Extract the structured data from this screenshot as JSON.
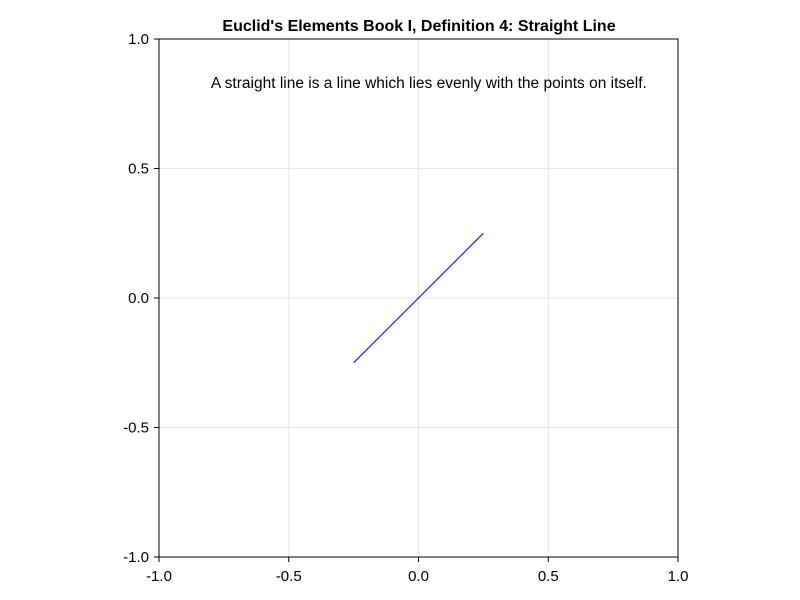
{
  "chart_data": {
    "type": "line",
    "title": "Euclid's Elements Book I, Definition 4: Straight Line",
    "xlabel": "",
    "ylabel": "",
    "xlim": [
      -1.0,
      1.0
    ],
    "ylim": [
      -1.0,
      1.0
    ],
    "grid": true,
    "x_ticks": [
      -1.0,
      -0.5,
      0.0,
      0.5,
      1.0
    ],
    "y_ticks": [
      -1.0,
      -0.5,
      0.0,
      0.5,
      1.0
    ],
    "x_tick_labels": [
      "-1.0",
      "-0.5",
      "0.0",
      "0.5",
      "1.0"
    ],
    "y_tick_labels": [
      "-1.0",
      "-0.5",
      "0.0",
      "0.5",
      "1.0"
    ],
    "series": [
      {
        "color": "#3333ff",
        "x": [
          -0.25,
          0.25
        ],
        "y": [
          -0.25,
          0.25
        ]
      }
    ],
    "annotations": [
      {
        "text": "A straight line is a line which lies evenly with the points on itself.",
        "x": -0.8,
        "y": 0.83
      }
    ]
  }
}
